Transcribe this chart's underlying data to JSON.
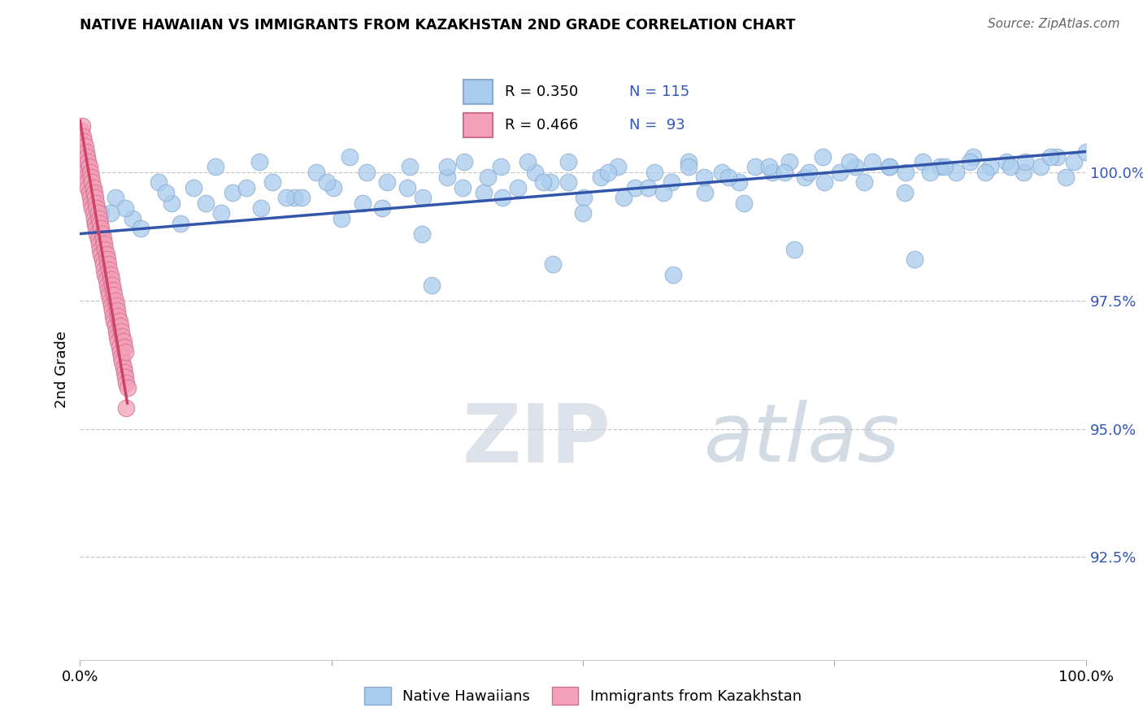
{
  "title": "NATIVE HAWAIIAN VS IMMIGRANTS FROM KAZAKHSTAN 2ND GRADE CORRELATION CHART",
  "source_text": "Source: ZipAtlas.com",
  "ylabel": "2nd Grade",
  "y_ticks": [
    92.5,
    95.0,
    97.5,
    100.0
  ],
  "y_tick_labels": [
    "92.5%",
    "95.0%",
    "97.5%",
    "100.0%"
  ],
  "xlim": [
    0.0,
    100.0
  ],
  "ylim": [
    90.5,
    101.8
  ],
  "blue_color": "#aaccee",
  "pink_color": "#f4a0b8",
  "blue_edge": "#88aad0",
  "pink_edge": "#d07090",
  "line_color": "#3355aa",
  "pink_line_color": "#cc4466",
  "tick_color": "#3355bb",
  "watermark_color": "#ccd8e8",
  "blue_scatter_x": [
    2.1,
    3.5,
    5.2,
    7.8,
    9.1,
    11.3,
    13.5,
    15.2,
    17.8,
    19.1,
    21.3,
    23.5,
    25.2,
    26.8,
    28.1,
    30.5,
    32.8,
    34.1,
    36.5,
    38.2,
    40.1,
    41.8,
    43.5,
    45.2,
    46.8,
    48.5,
    50.1,
    51.8,
    53.5,
    55.2,
    57.1,
    58.8,
    60.5,
    62.1,
    63.8,
    65.5,
    67.1,
    68.8,
    70.5,
    72.1,
    73.8,
    75.5,
    77.1,
    78.8,
    80.5,
    82.1,
    83.8,
    85.5,
    87.1,
    88.8,
    90.5,
    92.1,
    93.8,
    95.5,
    97.1,
    98.8,
    100.0,
    4.5,
    8.5,
    12.5,
    16.5,
    20.5,
    24.5,
    28.5,
    32.5,
    36.5,
    40.5,
    44.5,
    48.5,
    52.5,
    56.5,
    60.5,
    64.5,
    68.5,
    72.5,
    76.5,
    80.5,
    84.5,
    88.5,
    92.5,
    96.5,
    6.0,
    14.0,
    22.0,
    30.0,
    38.0,
    46.0,
    54.0,
    62.0,
    70.0,
    78.0,
    86.0,
    94.0,
    10.0,
    18.0,
    26.0,
    34.0,
    42.0,
    50.0,
    58.0,
    66.0,
    74.0,
    82.0,
    90.0,
    98.0,
    35.0,
    47.0,
    59.0,
    71.0,
    83.0,
    1.5,
    3.0
  ],
  "blue_scatter_y": [
    99.2,
    99.5,
    99.1,
    99.8,
    99.4,
    99.7,
    100.1,
    99.6,
    100.2,
    99.8,
    99.5,
    100.0,
    99.7,
    100.3,
    99.4,
    99.8,
    100.1,
    99.5,
    99.9,
    100.2,
    99.6,
    100.1,
    99.7,
    100.0,
    99.8,
    100.2,
    99.5,
    99.9,
    100.1,
    99.7,
    100.0,
    99.8,
    100.2,
    99.6,
    100.0,
    99.8,
    100.1,
    100.0,
    100.2,
    99.9,
    100.3,
    100.0,
    100.1,
    100.2,
    100.1,
    100.0,
    100.2,
    100.1,
    100.0,
    100.3,
    100.1,
    100.2,
    100.0,
    100.1,
    100.3,
    100.2,
    100.4,
    99.3,
    99.6,
    99.4,
    99.7,
    99.5,
    99.8,
    100.0,
    99.7,
    100.1,
    99.9,
    100.2,
    99.8,
    100.0,
    99.7,
    100.1,
    99.9,
    100.1,
    100.0,
    100.2,
    100.1,
    100.0,
    100.2,
    100.1,
    100.3,
    98.9,
    99.2,
    99.5,
    99.3,
    99.7,
    99.8,
    99.5,
    99.9,
    100.0,
    99.8,
    100.1,
    100.2,
    99.0,
    99.3,
    99.1,
    98.8,
    99.5,
    99.2,
    99.6,
    99.4,
    99.8,
    99.6,
    100.0,
    99.9,
    97.8,
    98.2,
    98.0,
    98.5,
    98.3,
    99.0,
    99.2
  ],
  "pink_scatter_x": [
    0.1,
    0.1,
    0.2,
    0.2,
    0.3,
    0.3,
    0.4,
    0.4,
    0.5,
    0.5,
    0.6,
    0.6,
    0.7,
    0.7,
    0.8,
    0.8,
    0.9,
    0.9,
    1.0,
    1.0,
    1.1,
    1.1,
    1.2,
    1.2,
    1.3,
    1.3,
    1.4,
    1.4,
    1.5,
    1.5,
    1.6,
    1.6,
    1.7,
    1.7,
    1.8,
    1.8,
    1.9,
    1.9,
    2.0,
    2.0,
    2.1,
    2.1,
    2.2,
    2.2,
    2.3,
    2.3,
    2.4,
    2.4,
    2.5,
    2.5,
    2.6,
    2.6,
    2.7,
    2.7,
    2.8,
    2.8,
    2.9,
    2.9,
    3.0,
    3.0,
    3.1,
    3.1,
    3.2,
    3.2,
    3.3,
    3.3,
    3.4,
    3.4,
    3.5,
    3.5,
    3.6,
    3.6,
    3.7,
    3.7,
    3.8,
    3.8,
    3.9,
    3.9,
    4.0,
    4.0,
    4.1,
    4.1,
    4.2,
    4.2,
    4.3,
    4.3,
    4.4,
    4.4,
    4.5,
    4.5,
    4.6,
    4.6,
    4.7
  ],
  "pink_scatter_y": [
    100.8,
    100.3,
    100.9,
    100.5,
    100.7,
    100.2,
    100.6,
    100.1,
    100.5,
    100.0,
    100.4,
    99.9,
    100.3,
    99.8,
    100.2,
    99.7,
    100.1,
    99.6,
    100.0,
    99.5,
    99.9,
    99.4,
    99.8,
    99.3,
    99.7,
    99.2,
    99.6,
    99.1,
    99.5,
    99.0,
    99.4,
    98.9,
    99.3,
    98.8,
    99.2,
    98.7,
    99.1,
    98.6,
    99.0,
    98.5,
    98.9,
    98.4,
    98.8,
    98.3,
    98.7,
    98.2,
    98.6,
    98.1,
    98.5,
    98.0,
    98.4,
    97.9,
    98.3,
    97.8,
    98.2,
    97.7,
    98.1,
    97.6,
    98.0,
    97.5,
    97.9,
    97.4,
    97.8,
    97.3,
    97.7,
    97.2,
    97.6,
    97.1,
    97.5,
    97.0,
    97.4,
    96.9,
    97.3,
    96.8,
    97.2,
    96.7,
    97.1,
    96.6,
    97.0,
    96.5,
    96.9,
    96.4,
    96.8,
    96.3,
    96.7,
    96.2,
    96.6,
    96.1,
    96.5,
    96.0,
    95.9,
    95.4,
    95.8
  ],
  "blue_line_x0": 0.0,
  "blue_line_x1": 100.0,
  "blue_line_y0": 98.8,
  "blue_line_y1": 100.4,
  "pink_line_x0": 0.0,
  "pink_line_x1": 4.7,
  "pink_line_y0": 101.0,
  "pink_line_y1": 95.5
}
